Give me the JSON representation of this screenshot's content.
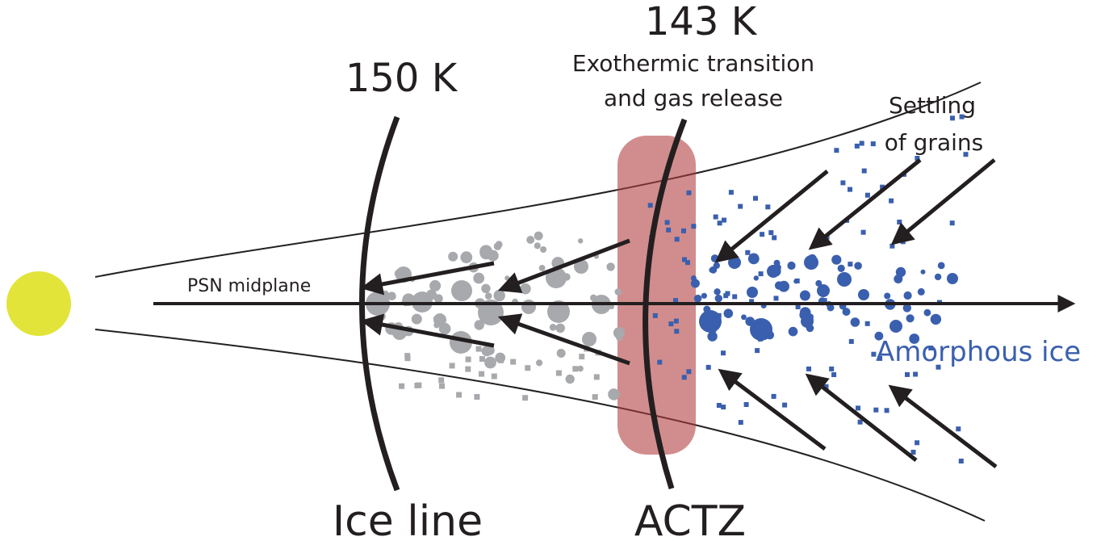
{
  "labels": {
    "temp_ice_line": "150 K",
    "temp_actz": "143 K",
    "actz_note_line1": "Exothermic transition",
    "actz_note_line2": "and gas release",
    "settling_line1": "Settling",
    "settling_line2": "of grains",
    "midplane": "PSN midplane",
    "amorphous": "Amorphous ice",
    "ice_line": "Ice line",
    "actz": "ACTZ"
  },
  "colors": {
    "star": "#e2e43a",
    "ink": "#231f20",
    "actz_band": "#b03a3a",
    "gray_grain": "#a7a9ac",
    "blue_grain": "#3a5fae",
    "amorphous_text": "#3a5fae"
  }
}
